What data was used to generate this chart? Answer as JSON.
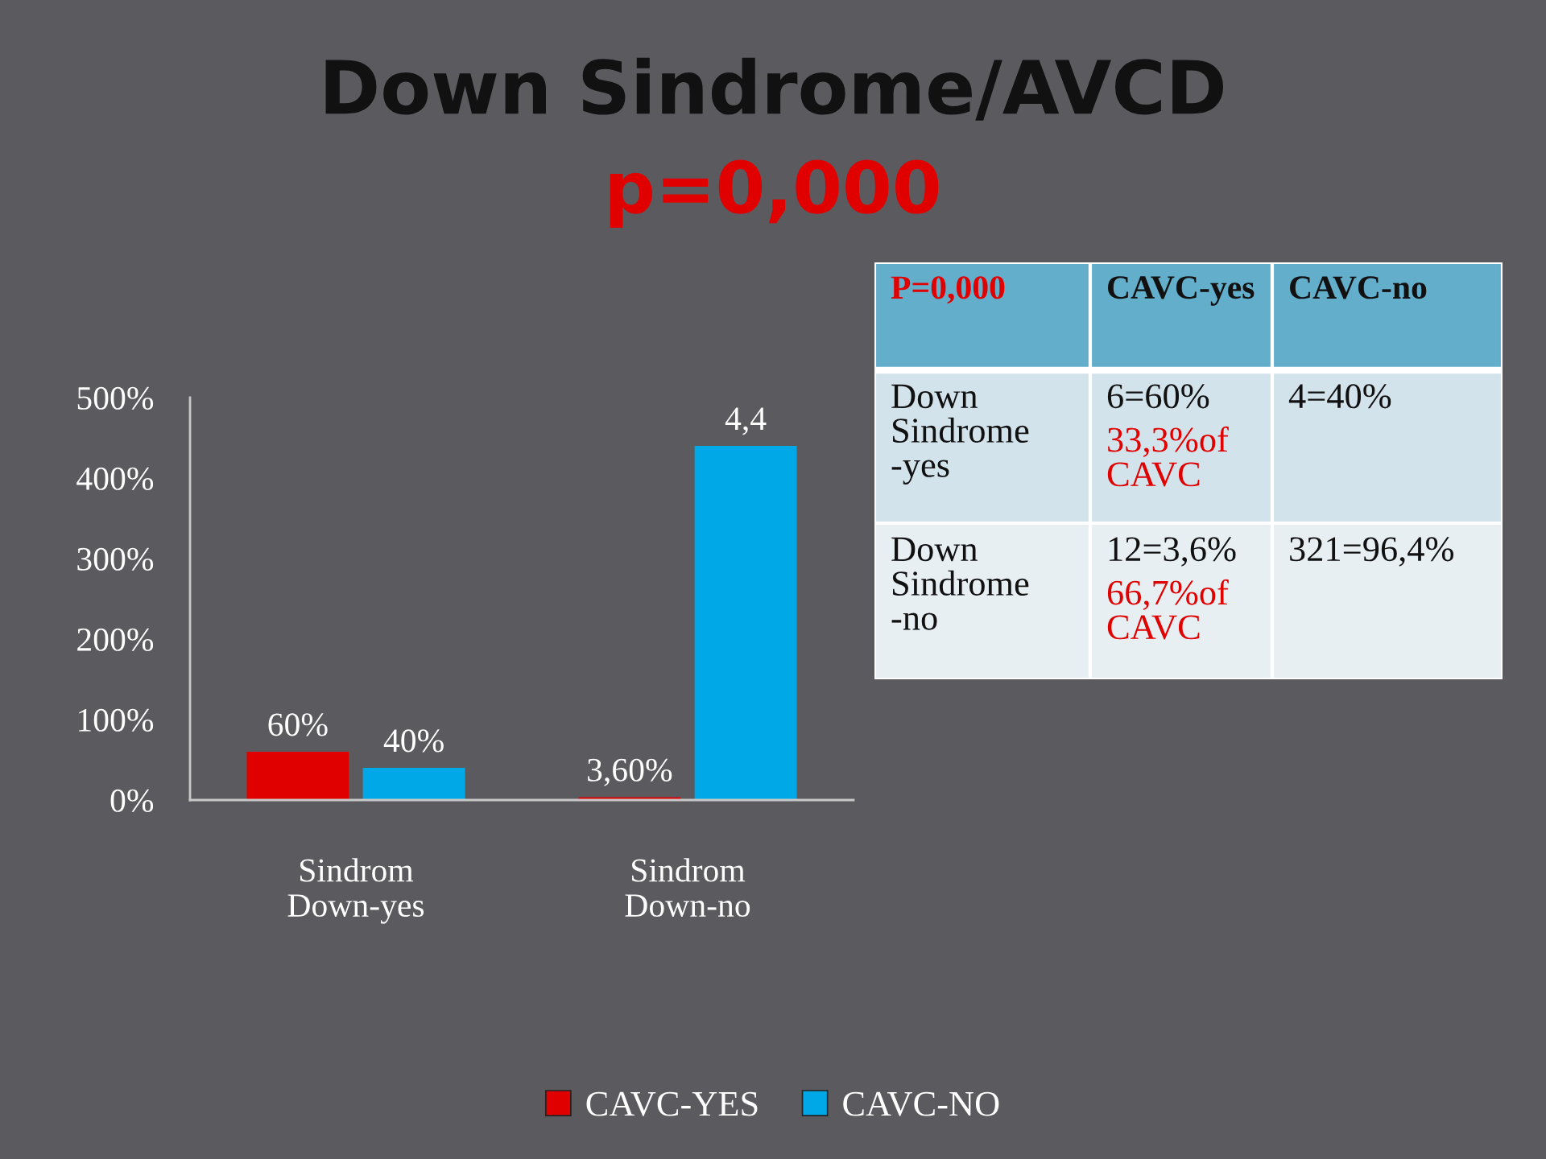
{
  "chart_data": [
    {
      "type": "bar",
      "title": "Down Sindrome/AVCD",
      "subtitle": "p=0,000",
      "categories": [
        "Sindrom Down-yes",
        "Sindrom Down-no"
      ],
      "series": [
        {
          "name": "CAVC-YES",
          "color": "#e00000",
          "values": [
            0.6,
            0.036
          ],
          "value_labels": [
            "60%",
            "3,60%"
          ]
        },
        {
          "name": "CAVC-NO",
          "color": "#00a8e8",
          "values": [
            0.4,
            4.4
          ],
          "value_labels": [
            "40%",
            "4,4"
          ]
        }
      ],
      "ylim": [
        0,
        5
      ],
      "yticks": [
        {
          "value": 0,
          "label": "0%"
        },
        {
          "value": 1,
          "label": "100%"
        },
        {
          "value": 2,
          "label": "200%"
        },
        {
          "value": 3,
          "label": "300%"
        },
        {
          "value": 4,
          "label": "400%"
        },
        {
          "value": 5,
          "label": "500%"
        }
      ],
      "grid": false,
      "legend": "bottom"
    },
    {
      "type": "other",
      "annotations": [
        "P=0,000",
        "CAVC-yes",
        "CAVC-no",
        "Down Sindrome -yes",
        "6=60%",
        "33,3%of CAVC",
        "4=40%",
        "Down Sindrome -no",
        "12=3,6%",
        "66,7%of CAVC",
        "321=96,4%"
      ]
    }
  ]
}
